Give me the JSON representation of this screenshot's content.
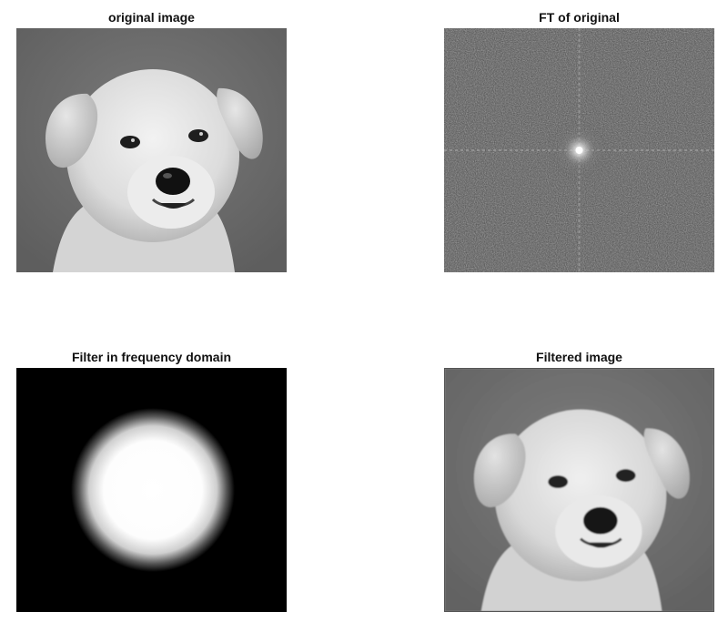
{
  "panels": [
    {
      "title": "original image",
      "content": "puppy-photo"
    },
    {
      "title": "FT of original",
      "content": "fourier-spectrum"
    },
    {
      "title": "Filter in frequency domain",
      "content": "gaussian-lowpass-filter"
    },
    {
      "title": "Filtered image",
      "content": "puppy-photo-filtered"
    }
  ],
  "colors": {
    "background": "#ffffff",
    "filter_background": "#000000",
    "filter_center": "#ffffff"
  }
}
